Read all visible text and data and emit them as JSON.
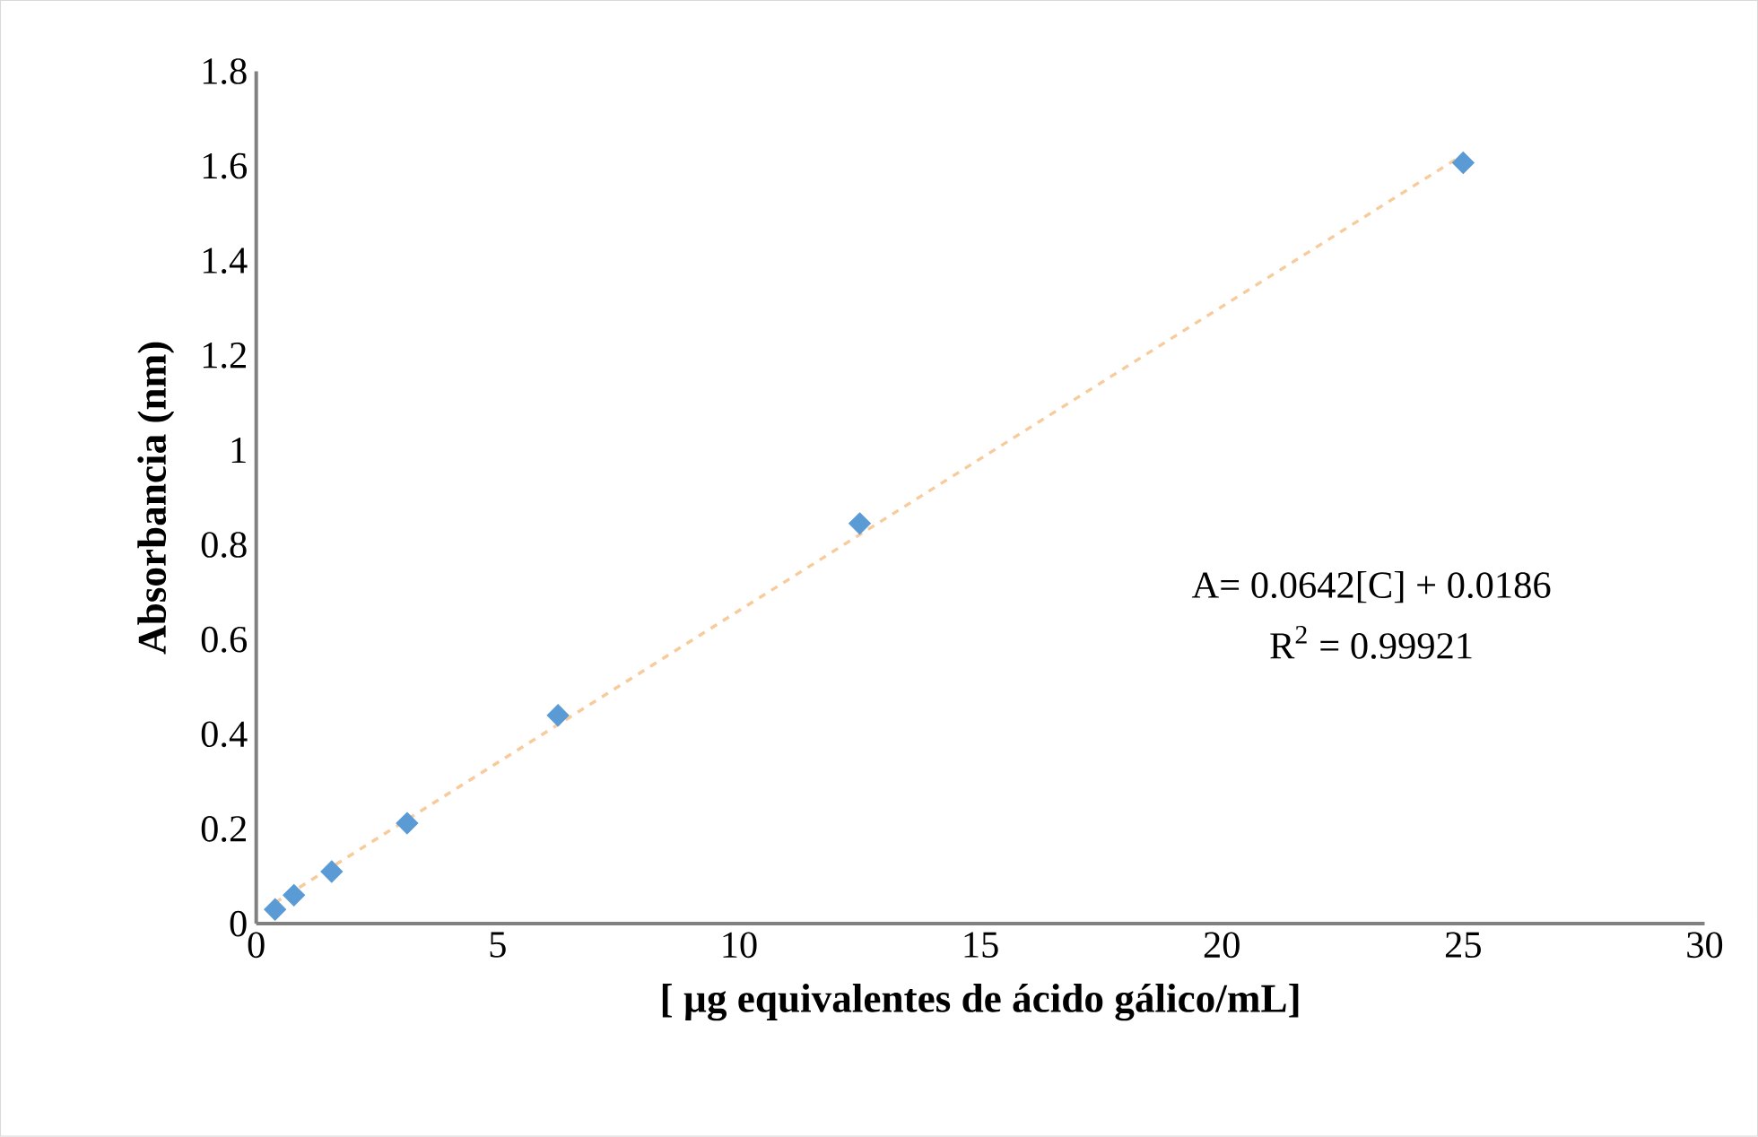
{
  "chart_data": {
    "type": "scatter",
    "xlabel": "[ µg equivalentes  de ácido gálico/mL]",
    "ylabel": "Absorbancia (nm)",
    "x": [
      0.39,
      0.78,
      1.5625,
      3.125,
      6.25,
      12.5,
      25
    ],
    "series": [
      {
        "color": "#5b9bd5",
        "marker": "diamond",
        "values": [
          0.03,
          0.06,
          0.11,
          0.212,
          0.44,
          0.845,
          1.607
        ]
      },
      {
        "type": "line",
        "color": "#f8cb9c",
        "line_style": "dashed",
        "marker": "none",
        "x": [
          0.39,
          25
        ],
        "values": [
          0.044,
          1.624
        ]
      }
    ],
    "xlim": [
      0,
      30
    ],
    "ylim": [
      0,
      1.8
    ],
    "xticks": [
      0,
      5,
      10,
      15,
      20,
      25,
      30
    ],
    "yticks": [
      0,
      {
        "value": 0.2,
        "label": "0.2"
      },
      {
        "value": 0.4,
        "label": "0.4"
      },
      {
        "value": 0.6,
        "label": "0.6"
      },
      {
        "value": 0.8,
        "label": "0.8"
      },
      1,
      {
        "value": 1.2,
        "label": "1.2"
      },
      {
        "value": 1.4,
        "label": "1.4"
      },
      {
        "value": 1.6,
        "label": "1.6"
      },
      {
        "value": 1.8,
        "label": "1.8"
      }
    ],
    "grid": false,
    "annotations": [
      "A= 0.0642[C] + 0.0186",
      "R$^{2}$ = 0.99921"
    ]
  }
}
